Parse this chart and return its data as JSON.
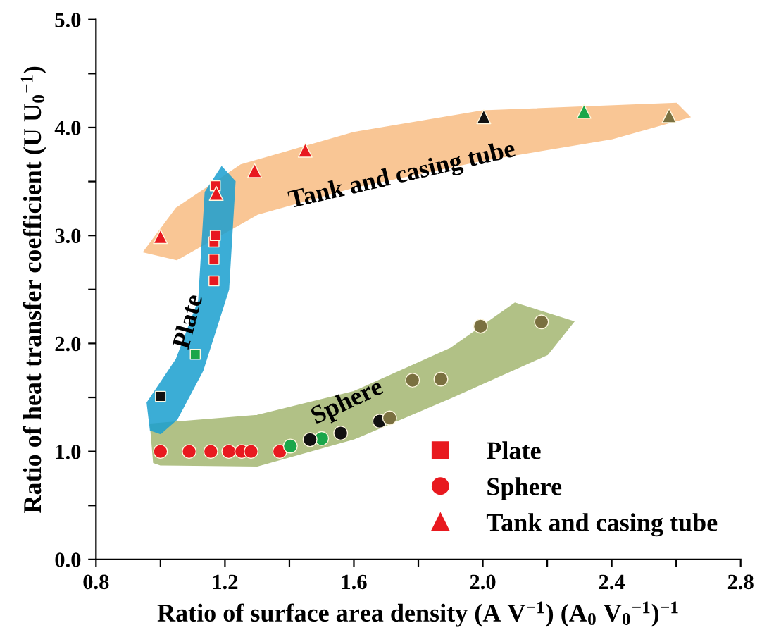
{
  "chart_data": {
    "type": "scatter",
    "xlabel": "Ratio of surface area density (A V$^{−1}$) (A$_{0}$ V$_{0}$$^{−1}$)$^{−1}$",
    "ylabel": "Ratio of heat transfer coefficient (U U$_{0}$$^{−1}$)",
    "xlim": [
      0.8,
      2.8
    ],
    "ylim": [
      0.0,
      5.0
    ],
    "xticks": [
      {
        "value": 0.8,
        "label": "0.8"
      },
      {
        "value": 1.0,
        "label": null
      },
      {
        "value": 1.2,
        "label": "1.2"
      },
      {
        "value": 1.4,
        "label": null
      },
      {
        "value": 1.6,
        "label": "1.6"
      },
      {
        "value": 1.8,
        "label": null
      },
      {
        "value": 2.0,
        "label": "2.0"
      },
      {
        "value": 2.2,
        "label": null
      },
      {
        "value": 2.4,
        "label": "2.4"
      },
      {
        "value": 2.6,
        "label": null
      },
      {
        "value": 2.8,
        "label": "2.8"
      }
    ],
    "yticks": [
      {
        "value": 0.0,
        "label": "0.0"
      },
      {
        "value": 0.5,
        "label": null
      },
      {
        "value": 1.0,
        "label": "1.0"
      },
      {
        "value": 1.5,
        "label": null
      },
      {
        "value": 2.0,
        "label": "2.0"
      },
      {
        "value": 2.5,
        "label": null
      },
      {
        "value": 3.0,
        "label": "3.0"
      },
      {
        "value": 3.5,
        "label": null
      },
      {
        "value": 4.0,
        "label": "4.0"
      },
      {
        "value": 4.5,
        "label": null
      },
      {
        "value": 5.0,
        "label": "5.0"
      }
    ],
    "grid": false,
    "legend": "bottom right",
    "annotations": [
      "Tank and casing tube",
      "Plate",
      "Sphere"
    ],
    "series": [
      {
        "name": "Plate",
        "color": "#e8191f",
        "marker": "square",
        "x": [
          1.0,
          1.108,
          1.166,
          1.166,
          1.166,
          1.17,
          1.17
        ],
        "values": [
          1.51,
          1.9,
          2.58,
          2.78,
          2.94,
          3.0,
          3.46
        ],
        "colors": [
          "#111111",
          "#1aa64a",
          "#e8191f",
          "#e8191f",
          "#e8191f",
          "#e8191f",
          "#e8191f"
        ]
      },
      {
        "name": "Sphere",
        "color": "#e8191f",
        "marker": "circle",
        "x": [
          1.0,
          1.089,
          1.156,
          1.212,
          1.252,
          1.281,
          1.37,
          1.403,
          1.5,
          1.464,
          1.559,
          1.68,
          1.711,
          1.782,
          1.87,
          1.993,
          2.182
        ],
        "values": [
          1.0,
          1.0,
          1.0,
          1.0,
          1.0,
          1.0,
          1.0,
          1.05,
          1.12,
          1.11,
          1.17,
          1.28,
          1.31,
          1.66,
          1.67,
          2.16,
          2.2
        ],
        "colors": [
          "#e8191f",
          "#e8191f",
          "#e8191f",
          "#e8191f",
          "#e8191f",
          "#e8191f",
          "#e8191f",
          "#1aa64a",
          "#1aa64a",
          "#111111",
          "#111111",
          "#111111",
          "#7a7040",
          "#7a7040",
          "#7a7040",
          "#7a7040",
          "#7a7040"
        ]
      },
      {
        "name": "Tank and casing tube",
        "color": "#e8191f",
        "marker": "triangle",
        "x": [
          1.0,
          1.173,
          1.292,
          1.449,
          2.003,
          2.314,
          2.578
        ],
        "values": [
          2.99,
          3.39,
          3.6,
          3.79,
          4.1,
          4.15,
          4.11
        ],
        "colors": [
          "#e8191f",
          "#e8191f",
          "#e8191f",
          "#e8191f",
          "#111111",
          "#1aa64a",
          "#7a7040"
        ]
      }
    ]
  }
}
